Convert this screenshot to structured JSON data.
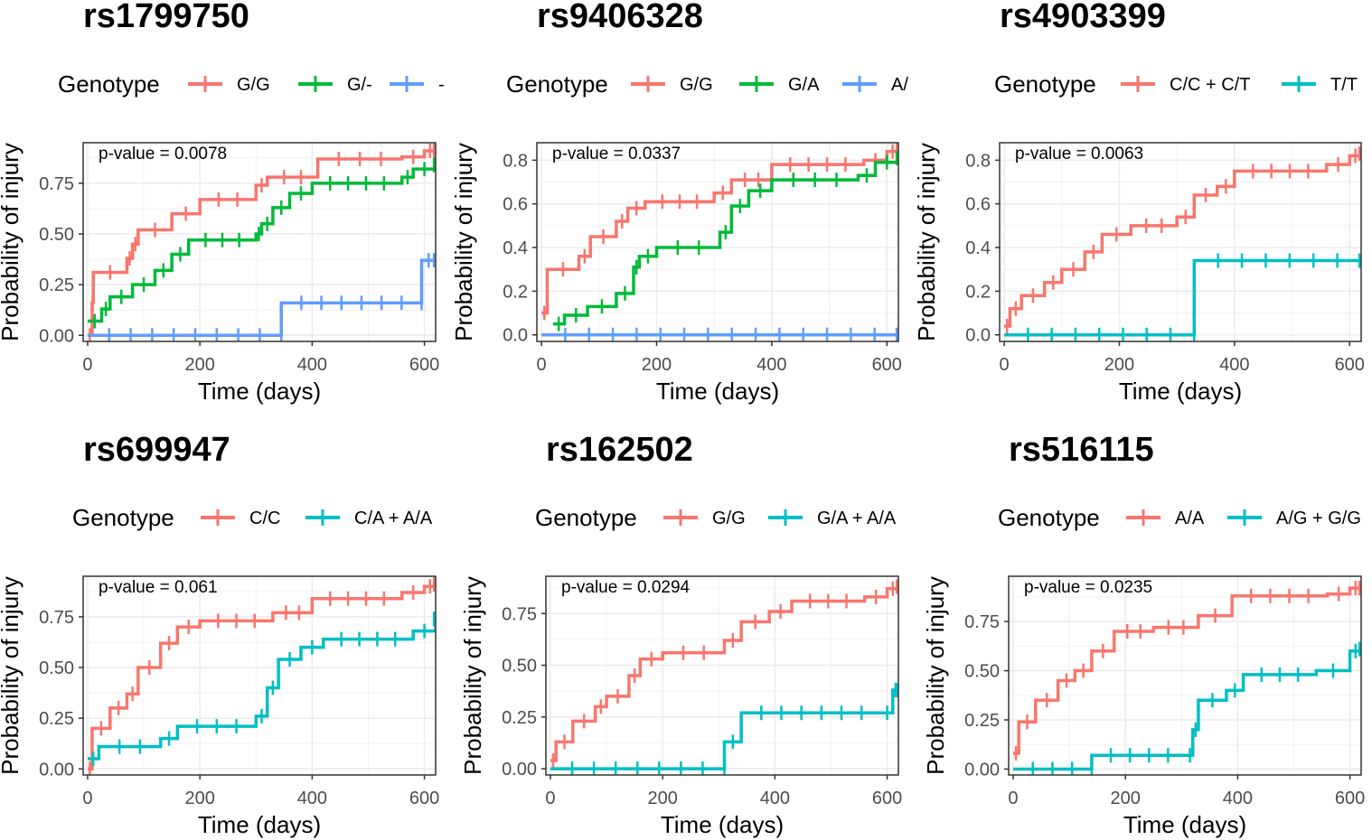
{
  "colors": {
    "red": "#F8766D",
    "green": "#00BA38",
    "blue": "#619CFF",
    "cyan": "#00BFC4",
    "grid": "#EBEBEB",
    "axis": "#333333"
  },
  "chart_data": [
    {
      "type": "line",
      "id": "p1",
      "title": "rs1799750",
      "legend_title": "Genotype",
      "annotation": "p-value = 0.0078",
      "xlabel": "Time (days)",
      "ylabel": "Probability of injury",
      "xlim": [
        -8,
        620
      ],
      "ylim": [
        -0.03,
        0.95
      ],
      "xticks": [
        "0",
        "200",
        "400",
        "600"
      ],
      "yticks": [
        "0.00",
        "0.25",
        "0.50",
        "0.75"
      ],
      "series": [
        {
          "name": "G/G",
          "color": "red",
          "points": [
            [
              0,
              0.0
            ],
            [
              8,
              0.16
            ],
            [
              10,
              0.31
            ],
            [
              70,
              0.38
            ],
            [
              80,
              0.45
            ],
            [
              90,
              0.52
            ],
            [
              150,
              0.6
            ],
            [
              200,
              0.67
            ],
            [
              300,
              0.74
            ],
            [
              320,
              0.78
            ],
            [
              410,
              0.87
            ],
            [
              560,
              0.88
            ],
            [
              600,
              0.91
            ],
            [
              620,
              0.91
            ]
          ]
        },
        {
          "name": "G/-",
          "color": "green",
          "points": [
            [
              0,
              0.07
            ],
            [
              25,
              0.13
            ],
            [
              40,
              0.19
            ],
            [
              80,
              0.25
            ],
            [
              120,
              0.32
            ],
            [
              150,
              0.4
            ],
            [
              180,
              0.47
            ],
            [
              300,
              0.5
            ],
            [
              310,
              0.55
            ],
            [
              330,
              0.63
            ],
            [
              360,
              0.7
            ],
            [
              400,
              0.75
            ],
            [
              560,
              0.78
            ],
            [
              580,
              0.82
            ],
            [
              620,
              0.84
            ]
          ]
        },
        {
          "name": "-",
          "color": "blue",
          "points": [
            [
              0,
              0.0
            ],
            [
              345,
              0.0
            ],
            [
              345,
              0.16
            ],
            [
              595,
              0.16
            ],
            [
              595,
              0.37
            ],
            [
              620,
              0.37
            ]
          ]
        }
      ]
    },
    {
      "type": "line",
      "id": "p2",
      "title": "rs9406328",
      "legend_title": "Genotype",
      "annotation": "p-value = 0.0337",
      "xlabel": "Time (days)",
      "ylabel": "Probability of injury",
      "xlim": [
        -8,
        620
      ],
      "ylim": [
        -0.03,
        0.88
      ],
      "xticks": [
        "0",
        "200",
        "400",
        "600"
      ],
      "yticks": [
        "0.0",
        "0.2",
        "0.4",
        "0.6",
        "0.8"
      ],
      "series": [
        {
          "name": "G/G",
          "color": "red",
          "points": [
            [
              0,
              0.1
            ],
            [
              10,
              0.3
            ],
            [
              65,
              0.36
            ],
            [
              85,
              0.45
            ],
            [
              130,
              0.52
            ],
            [
              150,
              0.58
            ],
            [
              180,
              0.61
            ],
            [
              300,
              0.65
            ],
            [
              330,
              0.71
            ],
            [
              400,
              0.78
            ],
            [
              560,
              0.8
            ],
            [
              600,
              0.84
            ],
            [
              620,
              0.85
            ]
          ]
        },
        {
          "name": "G/A",
          "color": "green",
          "points": [
            [
              20,
              0.05
            ],
            [
              40,
              0.09
            ],
            [
              80,
              0.13
            ],
            [
              130,
              0.19
            ],
            [
              160,
              0.31
            ],
            [
              170,
              0.36
            ],
            [
              200,
              0.4
            ],
            [
              310,
              0.47
            ],
            [
              330,
              0.59
            ],
            [
              360,
              0.66
            ],
            [
              400,
              0.71
            ],
            [
              550,
              0.73
            ],
            [
              580,
              0.79
            ],
            [
              620,
              0.81
            ]
          ]
        },
        {
          "name": "A/",
          "color": "blue",
          "points": [
            [
              0,
              0.0
            ],
            [
              620,
              0.0
            ]
          ]
        }
      ]
    },
    {
      "type": "line",
      "id": "p3",
      "title": "rs4903399",
      "legend_title": "Genotype",
      "annotation": "p-value = 0.0063",
      "xlabel": "Time (days)",
      "ylabel": "Probability of injury",
      "xlim": [
        -8,
        620
      ],
      "ylim": [
        -0.03,
        0.88
      ],
      "xticks": [
        "0",
        "200",
        "400",
        "600"
      ],
      "yticks": [
        "0.0",
        "0.2",
        "0.4",
        "0.6",
        "0.8"
      ],
      "series": [
        {
          "name": "C/C + C/T",
          "color": "red",
          "points": [
            [
              0,
              0.04
            ],
            [
              10,
              0.12
            ],
            [
              30,
              0.18
            ],
            [
              70,
              0.24
            ],
            [
              100,
              0.3
            ],
            [
              140,
              0.38
            ],
            [
              170,
              0.46
            ],
            [
              220,
              0.5
            ],
            [
              300,
              0.54
            ],
            [
              330,
              0.64
            ],
            [
              370,
              0.68
            ],
            [
              400,
              0.75
            ],
            [
              560,
              0.78
            ],
            [
              600,
              0.82
            ],
            [
              620,
              0.83
            ]
          ]
        },
        {
          "name": "T/T",
          "color": "cyan",
          "points": [
            [
              0,
              0.0
            ],
            [
              330,
              0.0
            ],
            [
              330,
              0.34
            ],
            [
              620,
              0.34
            ]
          ]
        }
      ]
    },
    {
      "type": "line",
      "id": "p4",
      "title": "rs699947",
      "legend_title": "Genotype",
      "annotation": "p-value = 0.061",
      "xlabel": "Time (days)",
      "ylabel": "Probability of injury",
      "xlim": [
        -8,
        620
      ],
      "ylim": [
        -0.03,
        0.95
      ],
      "xticks": [
        "0",
        "200",
        "400",
        "600"
      ],
      "yticks": [
        "0.00",
        "0.25",
        "0.50",
        "0.75"
      ],
      "series": [
        {
          "name": "C/C",
          "color": "red",
          "points": [
            [
              0,
              0.0
            ],
            [
              8,
              0.2
            ],
            [
              40,
              0.3
            ],
            [
              70,
              0.37
            ],
            [
              90,
              0.5
            ],
            [
              130,
              0.62
            ],
            [
              160,
              0.7
            ],
            [
              200,
              0.73
            ],
            [
              330,
              0.77
            ],
            [
              400,
              0.84
            ],
            [
              560,
              0.87
            ],
            [
              600,
              0.9
            ],
            [
              620,
              0.91
            ]
          ]
        },
        {
          "name": "C/A + A/A",
          "color": "cyan",
          "points": [
            [
              0,
              0.05
            ],
            [
              20,
              0.11
            ],
            [
              130,
              0.15
            ],
            [
              160,
              0.21
            ],
            [
              300,
              0.26
            ],
            [
              320,
              0.4
            ],
            [
              340,
              0.54
            ],
            [
              380,
              0.6
            ],
            [
              420,
              0.64
            ],
            [
              580,
              0.68
            ],
            [
              620,
              0.74
            ]
          ]
        }
      ]
    },
    {
      "type": "line",
      "id": "p5",
      "title": "rs162502",
      "legend_title": "Genotype",
      "annotation": "p-value = 0.0294",
      "xlabel": "Time (days)",
      "ylabel": "Probability of injury",
      "xlim": [
        -8,
        620
      ],
      "ylim": [
        -0.03,
        0.93
      ],
      "xticks": [
        "0",
        "200",
        "400",
        "600"
      ],
      "yticks": [
        "0.00",
        "0.25",
        "0.50",
        "0.75"
      ],
      "series": [
        {
          "name": "G/G",
          "color": "red",
          "points": [
            [
              0,
              0.04
            ],
            [
              10,
              0.13
            ],
            [
              40,
              0.23
            ],
            [
              80,
              0.3
            ],
            [
              100,
              0.35
            ],
            [
              140,
              0.45
            ],
            [
              160,
              0.53
            ],
            [
              200,
              0.56
            ],
            [
              310,
              0.62
            ],
            [
              340,
              0.71
            ],
            [
              390,
              0.76
            ],
            [
              430,
              0.81
            ],
            [
              560,
              0.83
            ],
            [
              600,
              0.87
            ],
            [
              620,
              0.88
            ]
          ]
        },
        {
          "name": "G/A + A/A",
          "color": "cyan",
          "points": [
            [
              0,
              0.0
            ],
            [
              310,
              0.0
            ],
            [
              310,
              0.13
            ],
            [
              340,
              0.27
            ],
            [
              590,
              0.27
            ],
            [
              610,
              0.38
            ],
            [
              620,
              0.38
            ]
          ]
        }
      ]
    },
    {
      "type": "line",
      "id": "p6",
      "title": "rs516115",
      "legend_title": "Genotype",
      "annotation": "p-value = 0.0235",
      "xlabel": "Time (days)",
      "ylabel": "Probability of injury",
      "xlim": [
        -8,
        620
      ],
      "ylim": [
        -0.03,
        0.98
      ],
      "xticks": [
        "0",
        "200",
        "400",
        "600"
      ],
      "yticks": [
        "0.00",
        "0.25",
        "0.50",
        "0.75"
      ],
      "series": [
        {
          "name": "A/A",
          "color": "red",
          "points": [
            [
              0,
              0.08
            ],
            [
              10,
              0.24
            ],
            [
              40,
              0.35
            ],
            [
              80,
              0.45
            ],
            [
              110,
              0.5
            ],
            [
              140,
              0.6
            ],
            [
              180,
              0.7
            ],
            [
              250,
              0.72
            ],
            [
              330,
              0.78
            ],
            [
              390,
              0.88
            ],
            [
              560,
              0.89
            ],
            [
              600,
              0.92
            ],
            [
              620,
              0.92
            ]
          ]
        },
        {
          "name": "A/G + G/G",
          "color": "cyan",
          "points": [
            [
              0,
              0.0
            ],
            [
              140,
              0.0
            ],
            [
              140,
              0.07
            ],
            [
              310,
              0.07
            ],
            [
              320,
              0.2
            ],
            [
              330,
              0.35
            ],
            [
              380,
              0.4
            ],
            [
              410,
              0.48
            ],
            [
              540,
              0.5
            ],
            [
              600,
              0.6
            ],
            [
              620,
              0.61
            ]
          ]
        }
      ]
    }
  ]
}
